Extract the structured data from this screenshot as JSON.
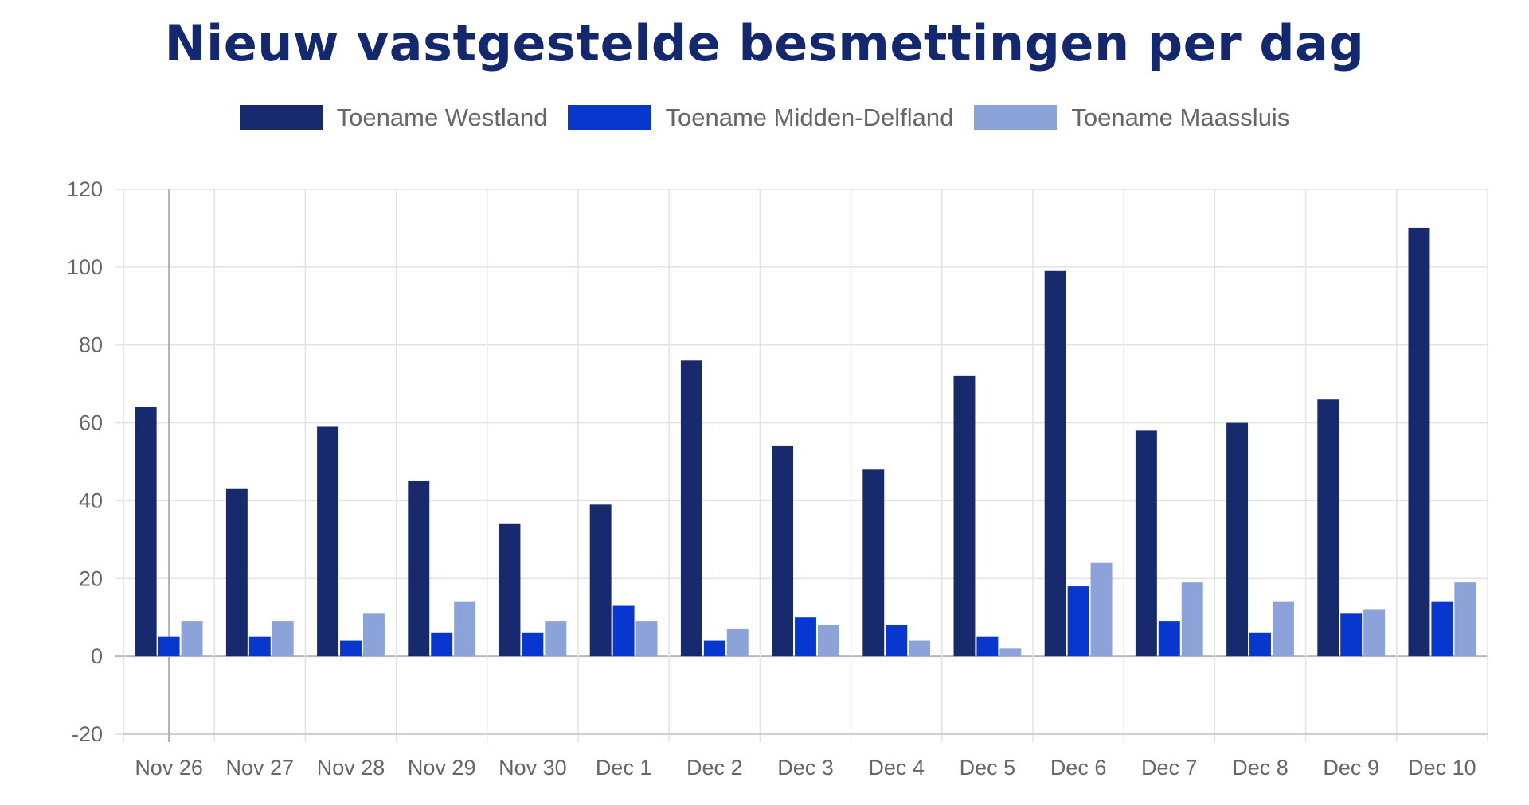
{
  "chart_data": {
    "type": "bar",
    "title": "Nieuw vastgestelde besmettingen per dag",
    "categories": [
      "Nov 26",
      "Nov 27",
      "Nov 28",
      "Nov 29",
      "Nov 30",
      "Dec 1",
      "Dec 2",
      "Dec 3",
      "Dec 4",
      "Dec 5",
      "Dec 6",
      "Dec 7",
      "Dec 8",
      "Dec 9",
      "Dec 10"
    ],
    "series": [
      {
        "name": "Toename Westland",
        "color": "#172a6e",
        "values": [
          64,
          43,
          59,
          45,
          34,
          39,
          76,
          54,
          48,
          72,
          99,
          58,
          60,
          66,
          110
        ]
      },
      {
        "name": "Toename Midden-Delfland",
        "color": "#0837cf",
        "values": [
          5,
          5,
          4,
          6,
          6,
          13,
          4,
          10,
          8,
          5,
          18,
          9,
          6,
          11,
          14
        ]
      },
      {
        "name": "Toename Maassluis",
        "color": "#8ba3d8",
        "values": [
          9,
          9,
          11,
          14,
          9,
          9,
          7,
          8,
          4,
          2,
          24,
          19,
          14,
          12,
          19
        ]
      }
    ],
    "yticks": [
      "120",
      "100",
      "80",
      "60",
      "40",
      "20",
      "0",
      "-20"
    ],
    "ylim": [
      -20,
      120
    ],
    "grid": true,
    "legend_position": "top"
  }
}
